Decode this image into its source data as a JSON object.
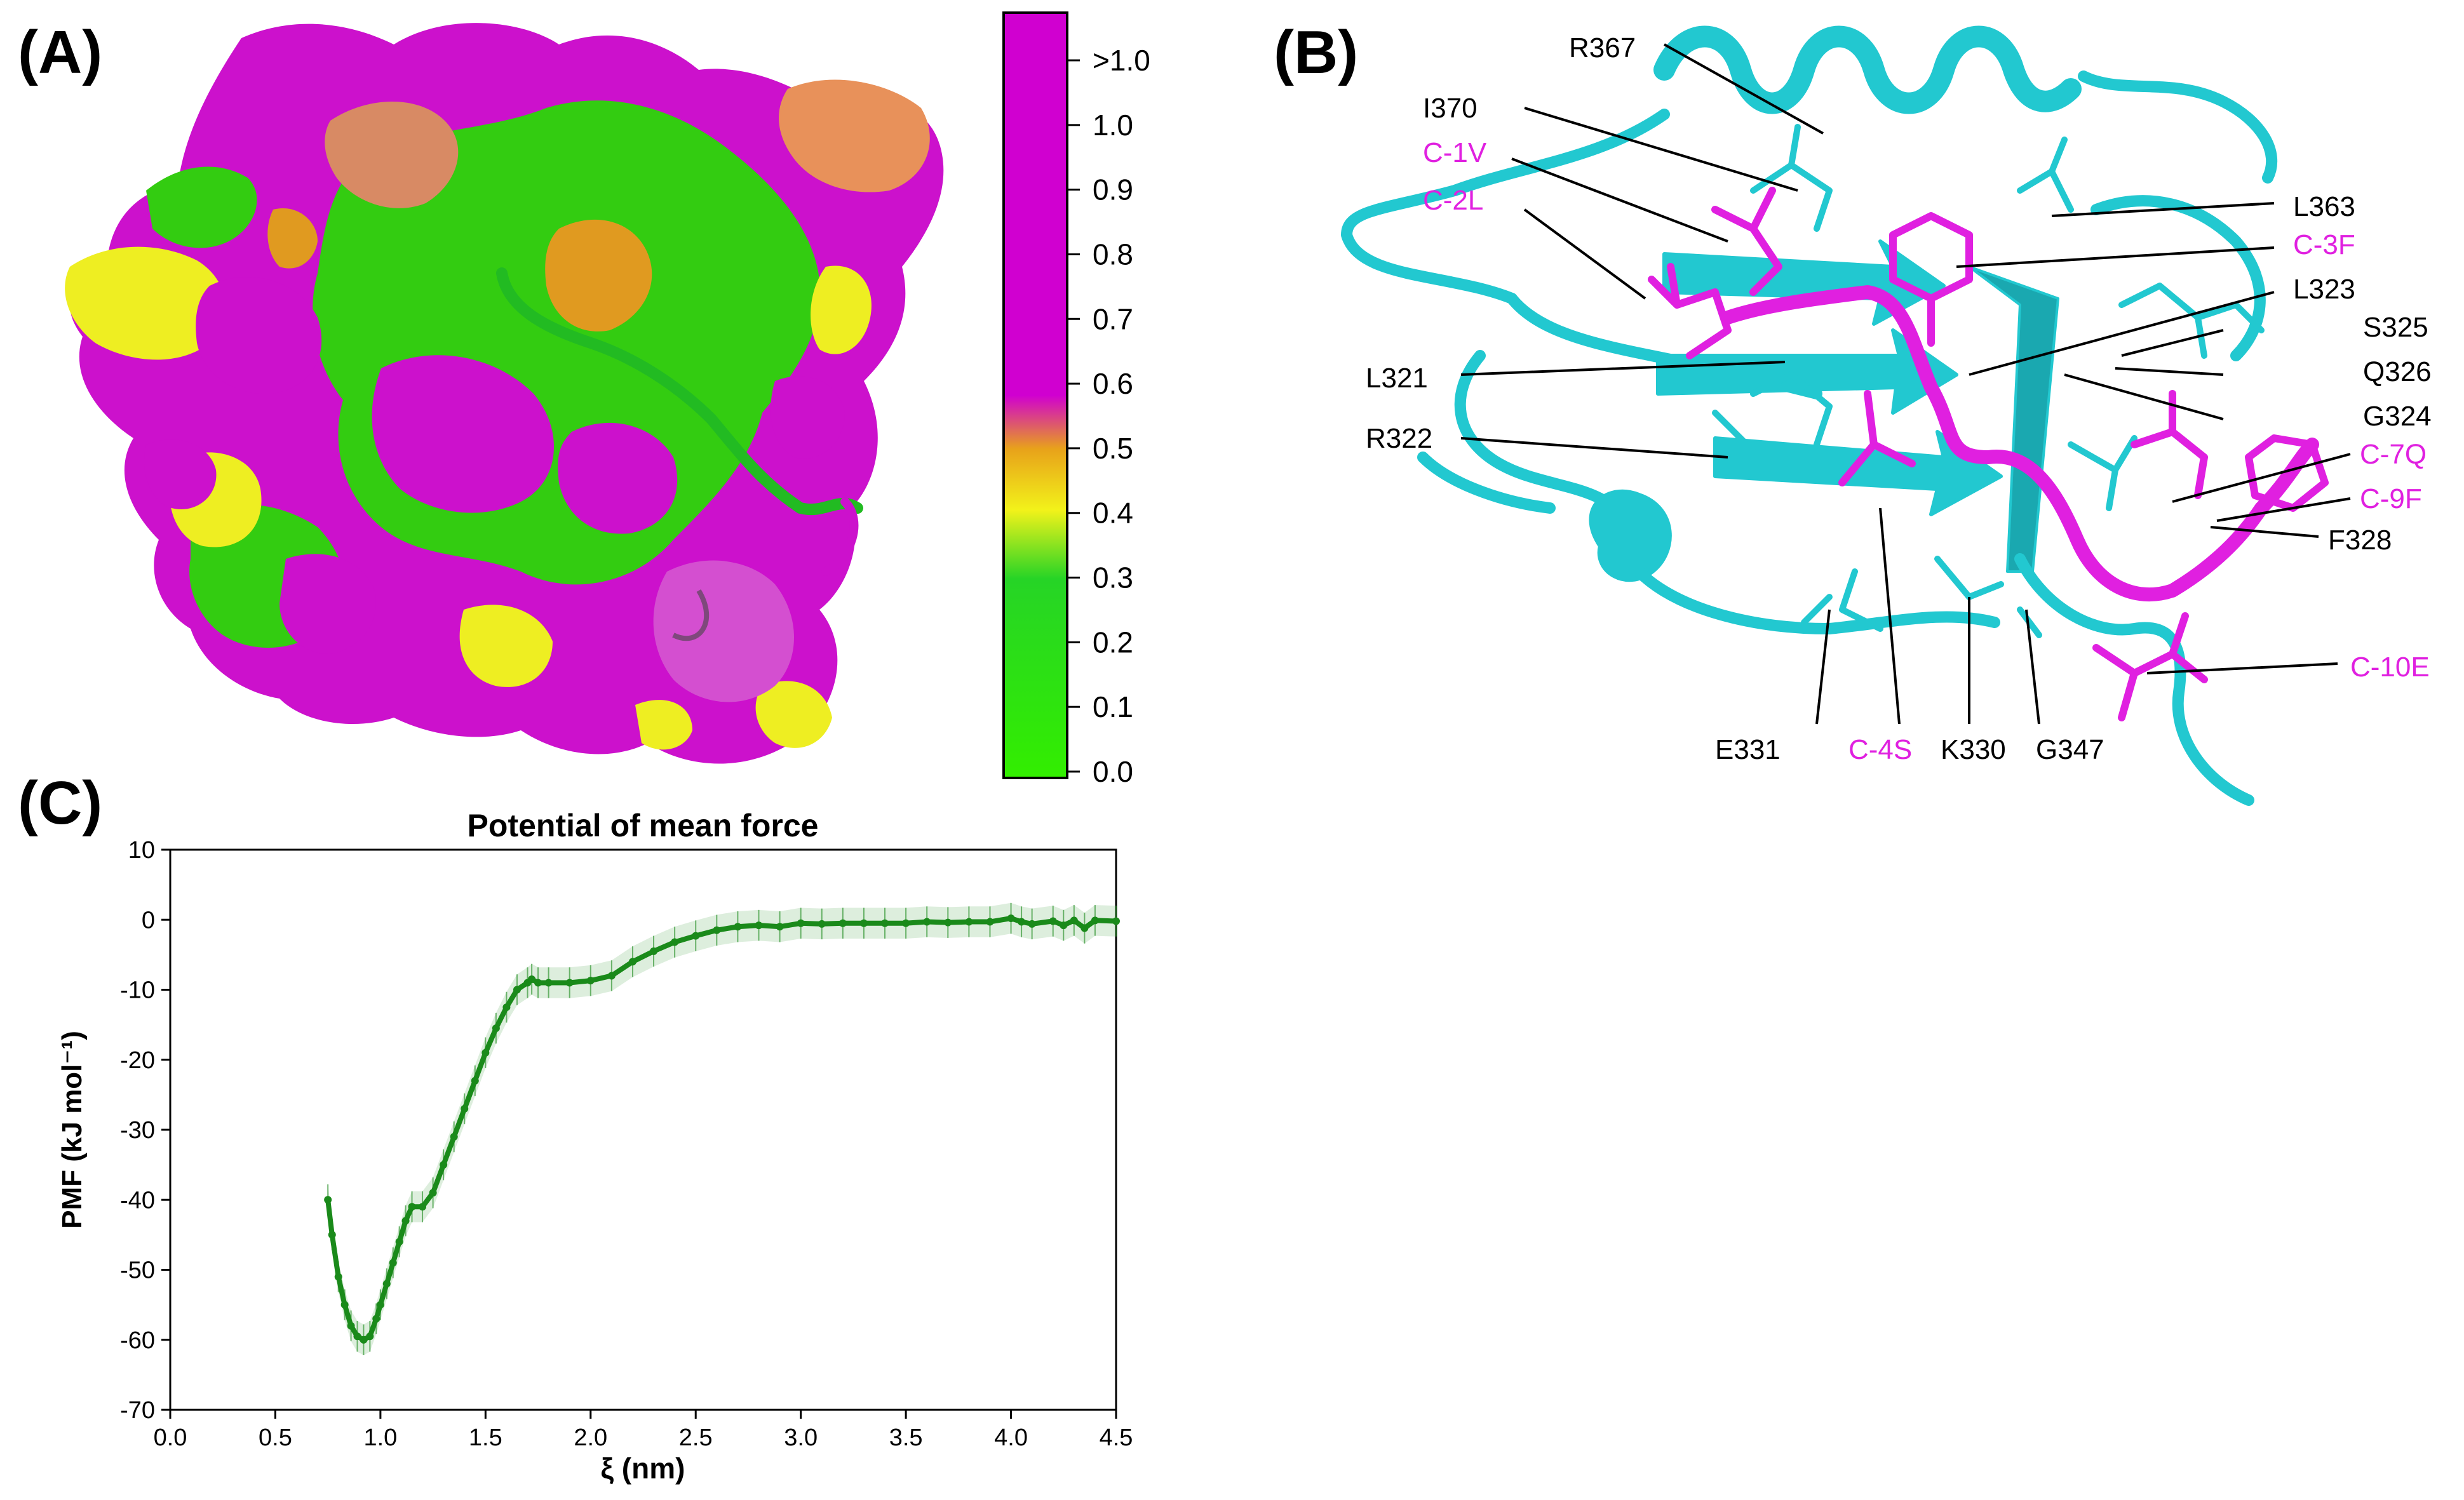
{
  "panels": {
    "a": {
      "label": "(A)"
    },
    "b": {
      "label": "(B)"
    },
    "c": {
      "label": "(C)"
    }
  },
  "colorbar": {
    "ticks": [
      ">1.0",
      "1.0",
      "0.9",
      "0.8",
      "0.7",
      "0.6",
      "0.5",
      "0.4",
      "0.3",
      "0.2",
      "0.1",
      "0.0"
    ],
    "colors": {
      "top": "#d000d0",
      "orange": "#e8a21a",
      "yellow": "#f2f21a",
      "green": "#26d426",
      "bottom": "#33ee00"
    }
  },
  "surface_colors": {
    "magenta": "#cc11cc",
    "green": "#33cc11",
    "yellow": "#eeee22",
    "orange": "#e09a20",
    "salmon": "#d88a64"
  },
  "structure": {
    "protein_color": "#22c8d0",
    "peptide_color": "#e020e0",
    "protein_labels": [
      "R367",
      "I370",
      "L363",
      "L323",
      "S325",
      "Q326",
      "G324",
      "L321",
      "R322",
      "F328",
      "E331",
      "K330",
      "G347"
    ],
    "peptide_labels": [
      "C-1V",
      "C-2L",
      "C-3F",
      "C-7Q",
      "C-9F",
      "C-10E",
      "C-4S"
    ]
  },
  "chart_data": {
    "type": "line",
    "title": "Potential of mean force",
    "xlabel": "ξ (nm)",
    "ylabel": "PMF (kJ mol⁻¹)",
    "xlim": [
      0.0,
      4.5
    ],
    "ylim": [
      -70,
      10
    ],
    "xticks": [
      "0.0",
      "0.5",
      "1.0",
      "1.5",
      "2.0",
      "2.5",
      "3.0",
      "3.5",
      "4.0",
      "4.5"
    ],
    "yticks": [
      "10",
      "0",
      "-10",
      "-20",
      "-30",
      "-40",
      "-50",
      "-60",
      "-70"
    ],
    "grid": false,
    "color": "#1a8a1a",
    "series": [
      {
        "x": [
          0.75,
          0.77,
          0.8,
          0.83,
          0.86,
          0.89,
          0.92,
          0.95,
          0.98,
          1.0,
          1.03,
          1.06,
          1.09,
          1.12,
          1.15,
          1.2,
          1.25,
          1.3,
          1.35,
          1.4,
          1.45,
          1.5,
          1.55,
          1.6,
          1.65,
          1.7,
          1.72,
          1.75,
          1.8,
          1.9,
          2.0,
          2.1,
          2.2,
          2.3,
          2.4,
          2.5,
          2.6,
          2.7,
          2.8,
          2.9,
          3.0,
          3.1,
          3.2,
          3.3,
          3.4,
          3.5,
          3.6,
          3.7,
          3.8,
          3.9,
          4.0,
          4.05,
          4.1,
          4.2,
          4.25,
          4.3,
          4.35,
          4.4,
          4.5
        ],
        "y": [
          -40,
          -45,
          -51,
          -55,
          -58,
          -59.5,
          -60,
          -59.5,
          -57,
          -55,
          -52,
          -49,
          -46,
          -43,
          -41,
          -41,
          -39,
          -35,
          -31,
          -27,
          -23,
          -19,
          -15.5,
          -12.5,
          -10,
          -9,
          -8.5,
          -9,
          -9,
          -9,
          -8.7,
          -8,
          -6,
          -4.5,
          -3.2,
          -2.3,
          -1.5,
          -1,
          -0.8,
          -1,
          -0.5,
          -0.6,
          -0.5,
          -0.5,
          -0.5,
          -0.5,
          -0.3,
          -0.4,
          -0.3,
          -0.3,
          0.2,
          -0.3,
          -0.6,
          -0.2,
          -0.8,
          -0.1,
          -1.2,
          -0.1,
          -0.2
        ],
        "error": 2.2
      }
    ]
  }
}
